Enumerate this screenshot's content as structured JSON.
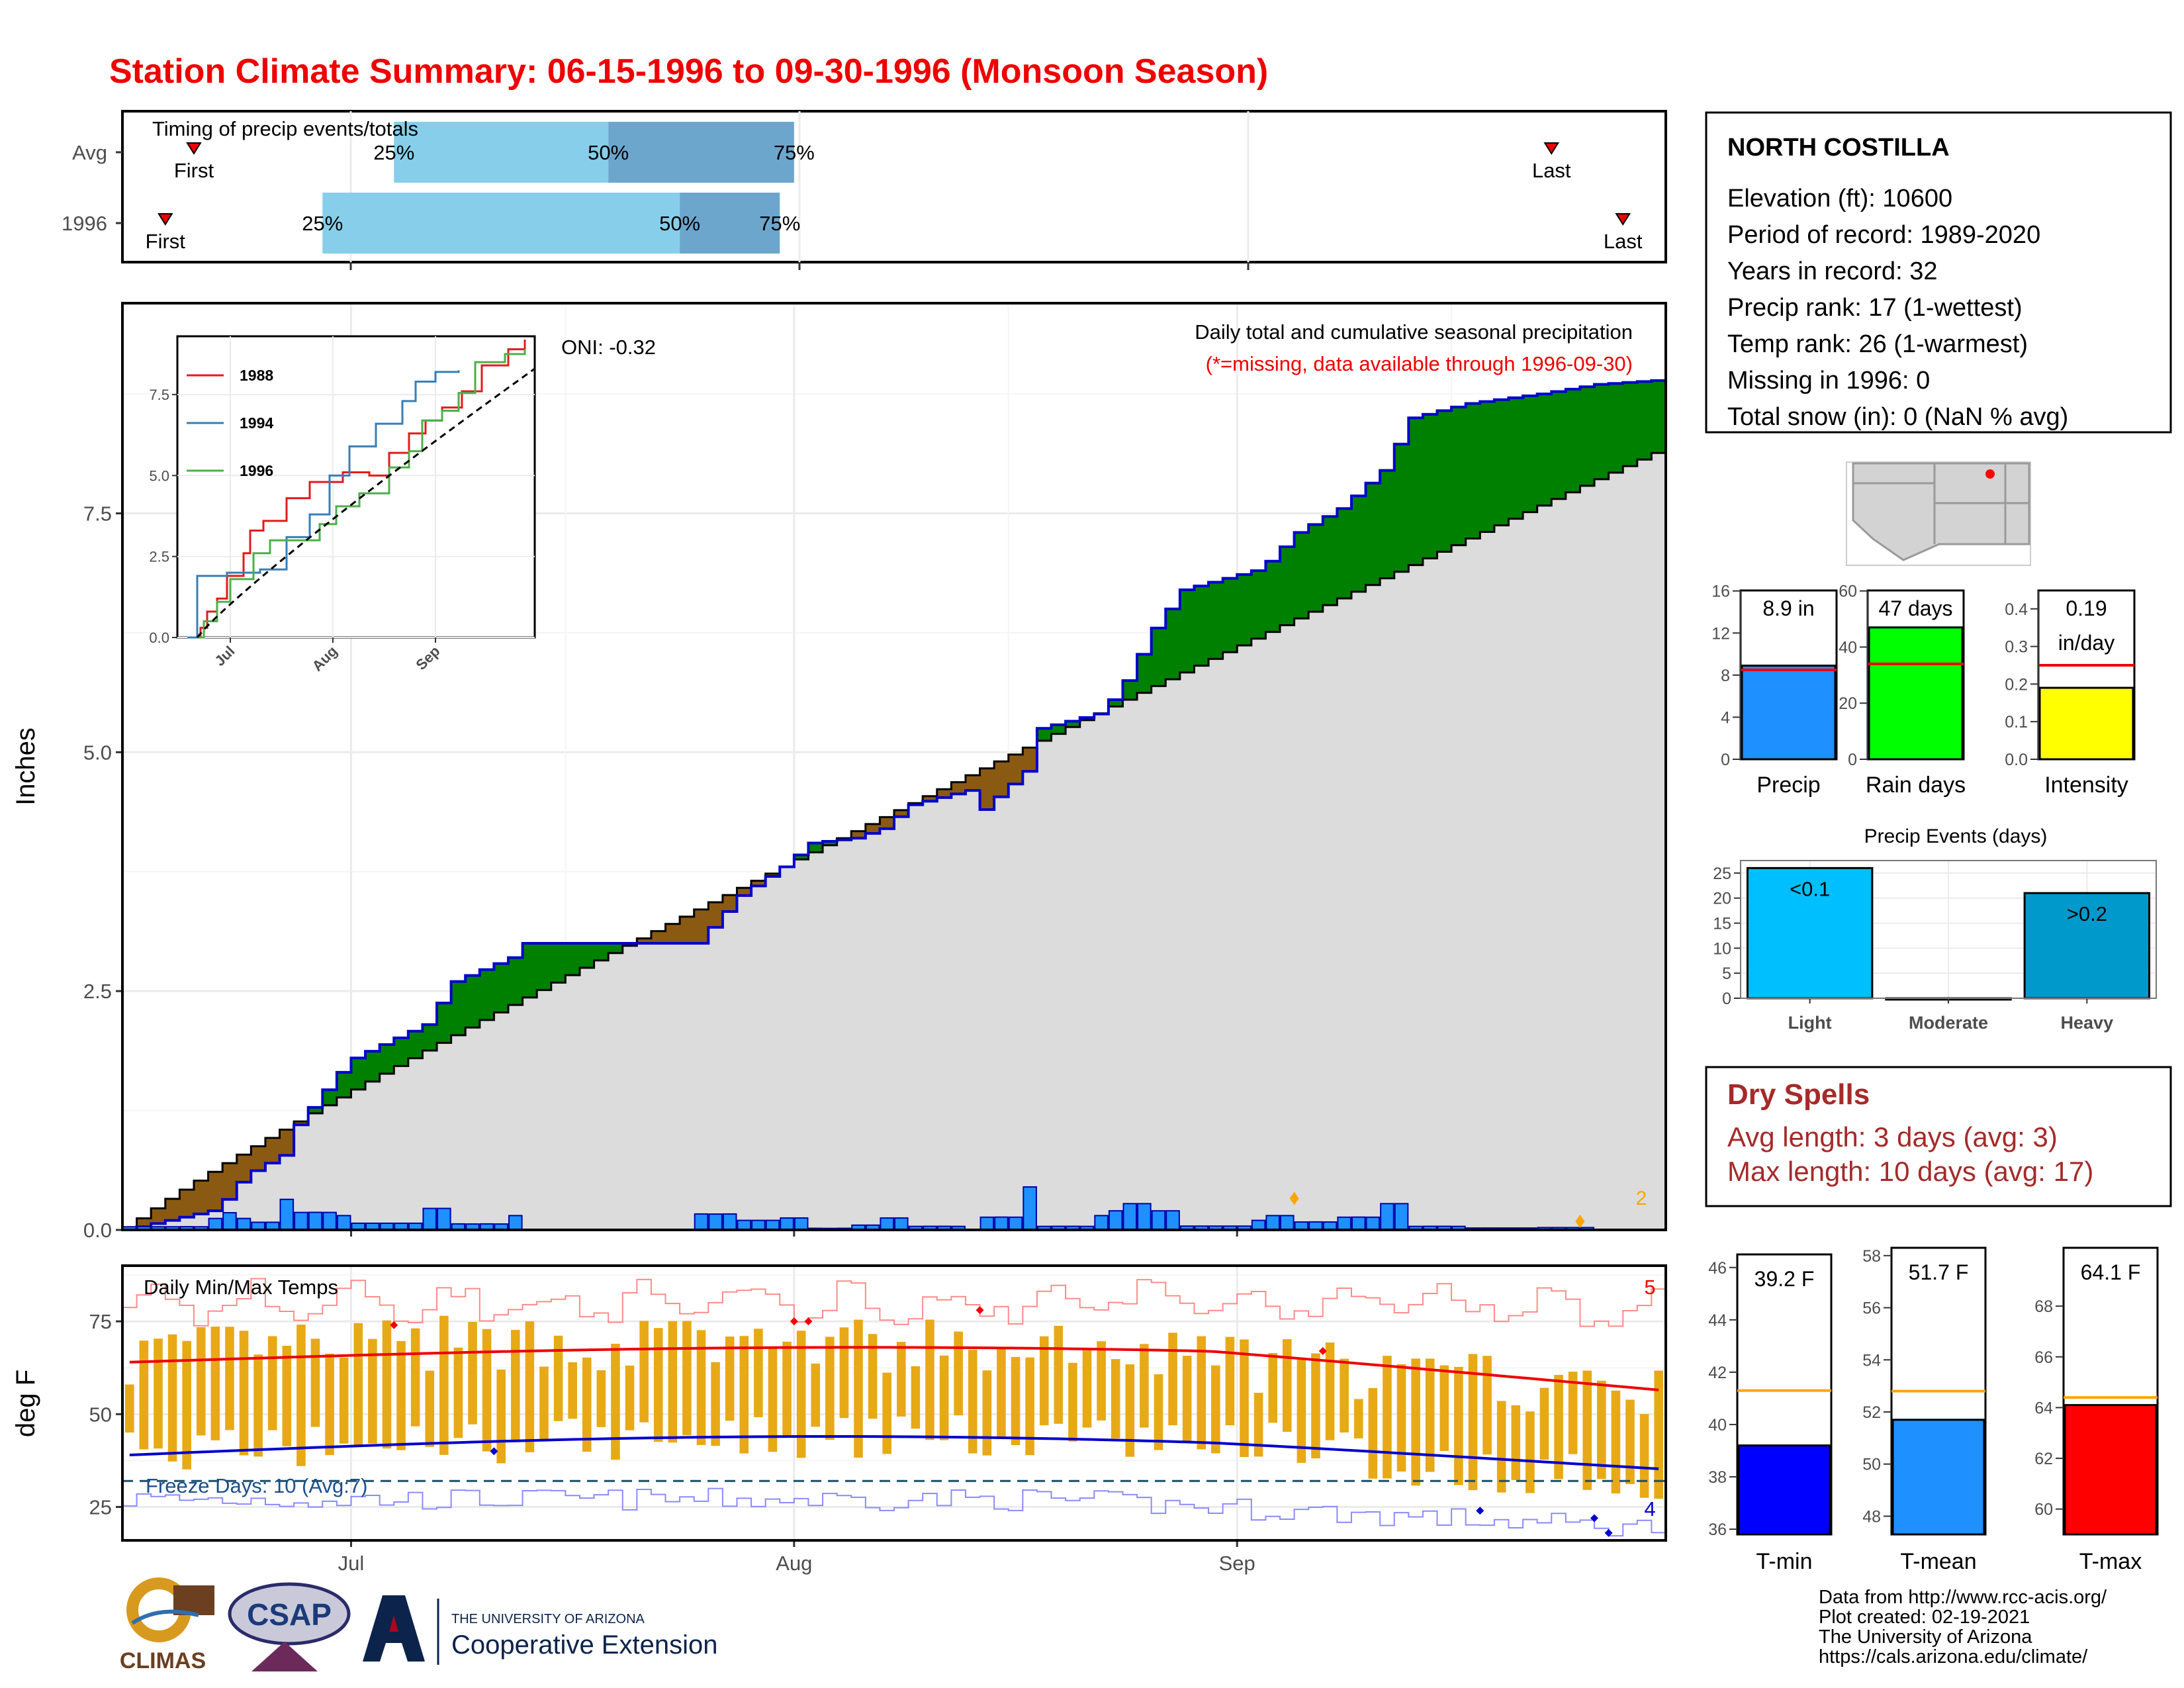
{
  "title": "Station Climate Summary: 06-15-1996 to 09-30-1996 (Monsoon Season)",
  "timing": {
    "label": "Timing of precip events/totals",
    "rows": [
      {
        "name": "Avg",
        "first_day": 5,
        "q25_day": 19,
        "q50_day": 34,
        "q75_day": 47,
        "last_day": 100
      },
      {
        "name": "1996",
        "first_day": 3,
        "q25_day": 14,
        "q50_day": 39,
        "q75_day": 46,
        "last_day": 105
      }
    ],
    "first_label": "First",
    "last_label": "Last",
    "q25_label": "25%",
    "q50_label": "50%",
    "q75_label": "75%"
  },
  "main_chart": {
    "ylabel": "Inches",
    "yticks": [
      "0.0",
      "2.5",
      "5.0",
      "7.5"
    ],
    "ylim": [
      0,
      9.7
    ],
    "title": "Daily total and cumulative seasonal precipitation",
    "missing_note": "(*=missing, data available through 1996-09-30)",
    "oni": "ONI: -0.32",
    "count_label": "2",
    "x_labels": [
      "Jul",
      "Aug",
      "Sep"
    ],
    "x_label_days": [
      16,
      47,
      78
    ]
  },
  "inset": {
    "yticks": [
      "0.0",
      "2.5",
      "5.0",
      "7.5"
    ],
    "ylim": [
      0,
      9.3
    ],
    "x_labels": [
      "Jul",
      "Aug",
      "Sep"
    ],
    "legend": [
      {
        "name": "1988",
        "color": "#e41a1c"
      },
      {
        "name": "1994",
        "color": "#377eb8"
      },
      {
        "name": "1996",
        "color": "#4daf4a"
      }
    ]
  },
  "temp_chart": {
    "ylabel": "deg F",
    "title": "Daily Min/Max Temps",
    "yticks": [
      "25",
      "50",
      "75"
    ],
    "ylim": [
      16,
      90
    ],
    "freeze_label": "Freeze Days: 10 (Avg:7)",
    "freeze_line": 32,
    "count_high": "5",
    "count_low": "4"
  },
  "station": {
    "name": "NORTH COSTILLA",
    "lines": [
      "Elevation (ft): 10600",
      "Period of record: 1989-2020",
      "Years in record: 32",
      "Precip rank: 17 (1-wettest)",
      "Temp rank: 26 (1-warmest)",
      "Missing in 1996: 0",
      "Total snow (in): 0 (NaN % avg)"
    ]
  },
  "small_bars": [
    {
      "label": "Precip",
      "value_text": "8.9 in",
      "value": 8.9,
      "avg": 8.5,
      "color": "#1e90ff",
      "yticks": [
        "0",
        "4",
        "8",
        "12",
        "16"
      ],
      "ymax": 16.8
    },
    {
      "label": "Rain days",
      "value_text": "47 days",
      "value": 47,
      "avg": 34,
      "color": "#00ff00",
      "yticks": [
        "0",
        "20",
        "40",
        "60"
      ],
      "ymax": 63
    },
    {
      "label": "Intensity",
      "value_text": "0.19",
      "value_text2": "in/day",
      "value": 0.19,
      "avg": 0.25,
      "color": "#ffff00",
      "yticks": [
        "0.0",
        "0.1",
        "0.2",
        "0.3",
        "0.4"
      ],
      "ymax": 0.47
    }
  ],
  "events": {
    "title": "Precip Events (days)",
    "categories": [
      "Light",
      "Moderate",
      "Heavy"
    ],
    "values": [
      26,
      0,
      21
    ],
    "bar_labels": [
      "<0.1",
      "",
      ">0.2"
    ],
    "colors": [
      "#00bfff",
      "#00bfff",
      "#0099cc"
    ],
    "yticks": [
      "0",
      "5",
      "10",
      "15",
      "20",
      "25"
    ],
    "ymax": 27.5
  },
  "dry_spells": {
    "title": "Dry Spells",
    "lines": [
      "Avg length: 3 days (avg: 3)",
      "Max length: 10 days (avg: 17)"
    ]
  },
  "temp_bars": [
    {
      "label": "T-min",
      "value_text": "39.2 F",
      "value": 39.2,
      "avg": 41.3,
      "color": "#0000ff",
      "yticks": [
        "36",
        "38",
        "40",
        "42",
        "44",
        "46"
      ],
      "ymin": 35.8,
      "ymax": 46.5
    },
    {
      "label": "T-mean",
      "value_text": "51.7 F",
      "value": 51.7,
      "avg": 52.8,
      "color": "#1e90ff",
      "yticks": [
        "48",
        "50",
        "52",
        "54",
        "56",
        "58"
      ],
      "ymin": 47.3,
      "ymax": 58.3
    },
    {
      "label": "T-max",
      "value_text": "64.1 F",
      "value": 64.1,
      "avg": 64.4,
      "color": "#ff0000",
      "yticks": [
        "60",
        "62",
        "64",
        "66",
        "68"
      ],
      "ymin": 59.0,
      "ymax": 70.3
    }
  ],
  "credits": [
    "Data from http://www.rcc-acis.org/",
    "Plot created: 02-19-2021",
    "The University of Arizona",
    "https://cals.arizona.edu/climate/"
  ],
  "logos": {
    "climas": "CLIMAS",
    "csap": "CSAP",
    "ua_small": "THE UNIVERSITY OF ARIZONA",
    "ua_big": "Cooperative Extension"
  }
}
